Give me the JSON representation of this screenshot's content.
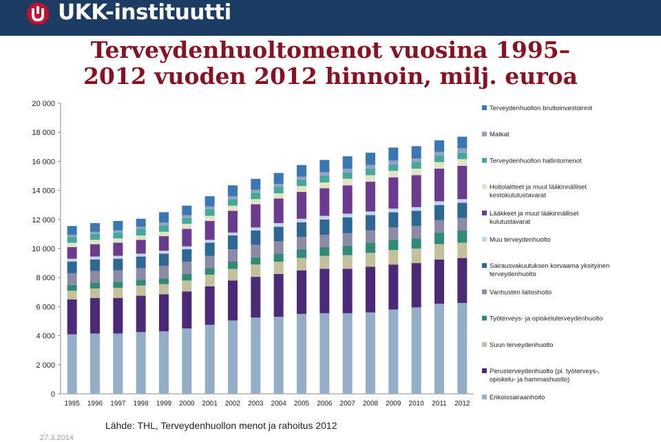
{
  "header": {
    "logo_text": "UKK-instituutti",
    "logo_icon": "ukk-logo-icon",
    "bar_color": "#1d3c63"
  },
  "title": {
    "line1": "Terveydenhuoltomenot vuosina 1995–",
    "line2": "2012 vuoden 2012 hinnoin, milj. euroa",
    "color": "#8b1022"
  },
  "footer": {
    "source": "Lähde: THL, Terveydenhuollon menot ja rahoitus 2012",
    "date": "27.3.2014"
  },
  "chart_data": {
    "type": "bar",
    "stacked": true,
    "categories": [
      "1995",
      "1996",
      "1997",
      "1998",
      "1999",
      "2000",
      "2001",
      "2002",
      "2003",
      "2004",
      "2005",
      "2006",
      "2007",
      "2008",
      "2009",
      "2010",
      "2011",
      "2012"
    ],
    "ylim": [
      0,
      20000
    ],
    "yticks": [
      "0",
      "2 000",
      "4 000",
      "6 000",
      "8 000",
      "10 000",
      "12 000",
      "14 000",
      "16 000",
      "18 000",
      "20 000"
    ],
    "ytick_values": [
      0,
      2000,
      4000,
      6000,
      8000,
      10000,
      12000,
      14000,
      16000,
      18000,
      20000
    ],
    "grid": false,
    "legend_position": "right",
    "series": [
      {
        "name": "Erikoissairaanhoito",
        "color": "#93aec6",
        "values": [
          4100,
          4150,
          4150,
          4250,
          4300,
          4500,
          4750,
          5050,
          5250,
          5300,
          5500,
          5550,
          5550,
          5600,
          5800,
          5950,
          6200,
          6250
        ]
      },
      {
        "name": "Perusterveydenhuolto (pl. työterveys-, opiskelu- ja hammashuolto)",
        "color": "#4b2a7a",
        "values": [
          2400,
          2450,
          2450,
          2500,
          2550,
          2550,
          2650,
          2750,
          2800,
          2950,
          3000,
          3050,
          3050,
          3150,
          3100,
          3050,
          3050,
          3100
        ]
      },
      {
        "name": "Suun terveydenhuolto",
        "color": "#c3c09c",
        "values": [
          600,
          650,
          700,
          700,
          700,
          750,
          800,
          800,
          850,
          850,
          850,
          900,
          950,
          950,
          1000,
          1000,
          1050,
          1050
        ]
      },
      {
        "name": "Työterveys- ja opiskeluterveydenhuolto",
        "color": "#2e8c76",
        "values": [
          400,
          400,
          400,
          400,
          400,
          450,
          450,
          500,
          500,
          550,
          600,
          600,
          650,
          700,
          700,
          700,
          800,
          850
        ]
      },
      {
        "name": "Vanhusten laitoshoito",
        "color": "#8d8aa8",
        "values": [
          800,
          800,
          800,
          800,
          850,
          850,
          850,
          850,
          850,
          850,
          850,
          850,
          850,
          850,
          850,
          850,
          850,
          850
        ]
      },
      {
        "name": "Sairausvakuutuksen korvaama yksityinen terveydenhuolto",
        "color": "#2d6894",
        "values": [
          800,
          800,
          800,
          800,
          850,
          850,
          900,
          950,
          1000,
          1000,
          1000,
          1050,
          1100,
          1050,
          1050,
          1050,
          1050,
          1050
        ]
      },
      {
        "name": "Muu terveydenhuolto",
        "color": "#c5d5e8",
        "values": [
          200,
          200,
          200,
          200,
          200,
          200,
          200,
          200,
          200,
          250,
          250,
          250,
          250,
          250,
          250,
          250,
          250,
          250
        ]
      },
      {
        "name": "Lääkkeet ja muut lääkinnälliset kulutustavarat",
        "color": "#6a3b8e",
        "values": [
          800,
          850,
          900,
          950,
          1000,
          1200,
          1300,
          1500,
          1600,
          1700,
          1850,
          1900,
          1950,
          2050,
          2150,
          2200,
          2250,
          2300
        ]
      },
      {
        "name": "Hoitolaitteet ja muut lääkinnälliset kestokulutustavarat",
        "color": "#e0e4c2",
        "values": [
          300,
          300,
          300,
          300,
          300,
          350,
          350,
          350,
          350,
          350,
          400,
          400,
          450,
          450,
          450,
          450,
          450,
          450
        ]
      },
      {
        "name": "Terveydenhuollon hallintomenot",
        "color": "#45a89a",
        "values": [
          400,
          400,
          400,
          450,
          450,
          400,
          450,
          450,
          450,
          450,
          450,
          450,
          450,
          450,
          450,
          450,
          450,
          450
        ]
      },
      {
        "name": "Matkat",
        "color": "#93a2c3",
        "values": [
          150,
          150,
          150,
          150,
          200,
          200,
          200,
          200,
          200,
          200,
          200,
          250,
          250,
          250,
          250,
          250,
          250,
          300
        ]
      },
      {
        "name": "Terveydenhuollon bruttoinvestoinnit",
        "color": "#3a78b5",
        "values": [
          600,
          600,
          650,
          550,
          700,
          650,
          700,
          750,
          750,
          750,
          800,
          850,
          850,
          850,
          900,
          850,
          800,
          800
        ]
      }
    ]
  }
}
